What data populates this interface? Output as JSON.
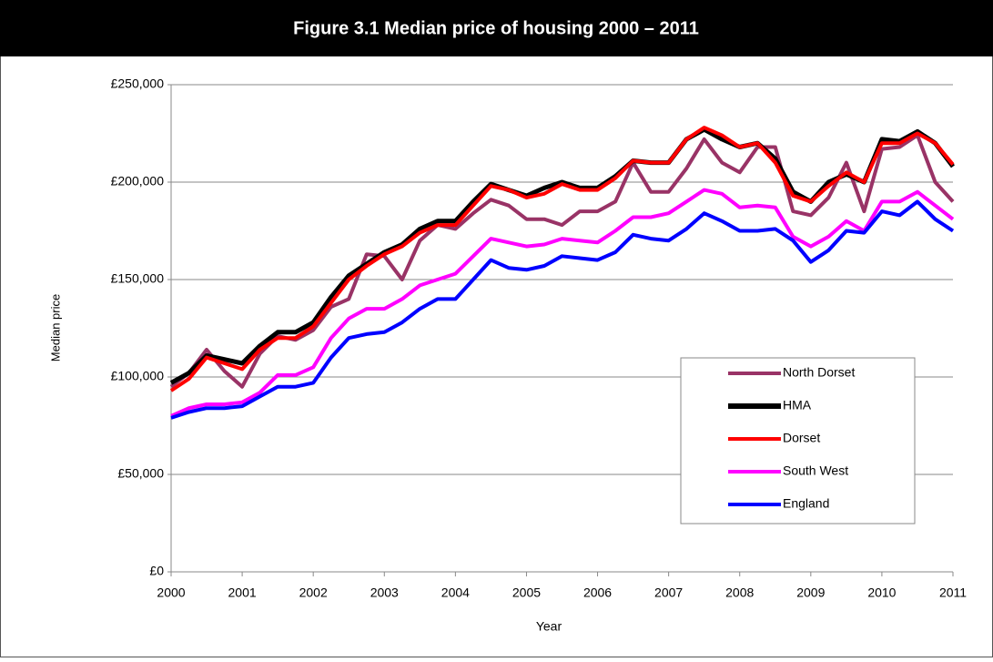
{
  "chart_data": {
    "type": "line",
    "title": "Figure 3.1 Median price of housing 2000 – 2011",
    "x_label": "Year",
    "y_label": "Median price",
    "xlim": [
      2000,
      2011
    ],
    "xticks": [
      2000,
      2001,
      2002,
      2003,
      2004,
      2005,
      2006,
      2007,
      2008,
      2009,
      2010,
      2011
    ],
    "ylim": [
      0,
      250000
    ],
    "yticks": [
      {
        "value": 0,
        "label": "£0"
      },
      {
        "value": 50000,
        "label": "£50,000"
      },
      {
        "value": 100000,
        "label": "£100,000"
      },
      {
        "value": 150000,
        "label": "£150,000"
      },
      {
        "value": 200000,
        "label": "£200,000"
      },
      {
        "value": 250000,
        "label": "£250,000"
      }
    ],
    "grid": true,
    "legend": "lower right",
    "x": [
      2000,
      2000.25,
      2000.5,
      2000.75,
      2001,
      2001.25,
      2001.5,
      2001.75,
      2002,
      2002.25,
      2002.5,
      2002.75,
      2003,
      2003.25,
      2003.5,
      2003.75,
      2004,
      2004.25,
      2004.5,
      2004.75,
      2005,
      2005.25,
      2005.5,
      2005.75,
      2006,
      2006.25,
      2006.5,
      2006.75,
      2007,
      2007.25,
      2007.5,
      2007.75,
      2008,
      2008.25,
      2008.5,
      2008.75,
      2009,
      2009.25,
      2009.5,
      2009.75,
      2010,
      2010.25,
      2010.5,
      2010.75,
      2011
    ],
    "series": [
      {
        "name": "North Dorset",
        "color": "#993366",
        "values": [
          95000,
          102000,
          114000,
          103000,
          95000,
          112000,
          121000,
          119000,
          124000,
          136000,
          140000,
          163000,
          162000,
          150000,
          170000,
          178000,
          176000,
          184000,
          191000,
          188000,
          181000,
          181000,
          178000,
          185000,
          185000,
          190000,
          210000,
          195000,
          195000,
          207000,
          222000,
          210000,
          205000,
          218000,
          218000,
          185000,
          183000,
          192000,
          210000,
          185000,
          217000,
          218000,
          224000,
          200000,
          190000
        ]
      },
      {
        "name": "HMA",
        "color": "#000000",
        "values": [
          97000,
          102000,
          111000,
          109000,
          107000,
          116000,
          123000,
          123000,
          128000,
          141000,
          152000,
          158000,
          164000,
          168000,
          176000,
          180000,
          180000,
          190000,
          199000,
          196000,
          193000,
          197000,
          200000,
          197000,
          197000,
          203000,
          211000,
          210000,
          210000,
          222000,
          227000,
          222000,
          218000,
          220000,
          212000,
          195000,
          190000,
          200000,
          204000,
          200000,
          222000,
          221000,
          226000,
          220000,
          208000
        ]
      },
      {
        "name": "Dorset",
        "color": "#ff0000",
        "values": [
          93000,
          99000,
          110000,
          107000,
          104000,
          114000,
          120000,
          120000,
          126000,
          138000,
          150000,
          157000,
          163000,
          167000,
          174000,
          178000,
          178000,
          188000,
          198000,
          196000,
          192000,
          194000,
          199000,
          196000,
          196000,
          202000,
          211000,
          210000,
          210000,
          222000,
          228000,
          224000,
          218000,
          220000,
          210000,
          193000,
          190000,
          198000,
          205000,
          200000,
          220000,
          220000,
          225000,
          220000,
          209000
        ]
      },
      {
        "name": "South West",
        "color": "#ff00ff",
        "values": [
          80000,
          84000,
          86000,
          86000,
          87000,
          92000,
          101000,
          101000,
          105000,
          120000,
          130000,
          135000,
          135000,
          140000,
          147000,
          150000,
          153000,
          162000,
          171000,
          169000,
          167000,
          168000,
          171000,
          170000,
          169000,
          175000,
          182000,
          182000,
          184000,
          190000,
          196000,
          194000,
          187000,
          188000,
          187000,
          172000,
          167000,
          172000,
          180000,
          175000,
          190000,
          190000,
          195000,
          188000,
          181000
        ]
      },
      {
        "name": "England",
        "color": "#0000ff",
        "values": [
          79000,
          82000,
          84000,
          84000,
          85000,
          90000,
          95000,
          95000,
          97000,
          110000,
          120000,
          122000,
          123000,
          128000,
          135000,
          140000,
          140000,
          150000,
          160000,
          156000,
          155000,
          157000,
          162000,
          161000,
          160000,
          164000,
          173000,
          171000,
          170000,
          176000,
          184000,
          180000,
          175000,
          175000,
          176000,
          170000,
          159000,
          165000,
          175000,
          174000,
          185000,
          183000,
          190000,
          181000,
          175000
        ]
      }
    ]
  }
}
